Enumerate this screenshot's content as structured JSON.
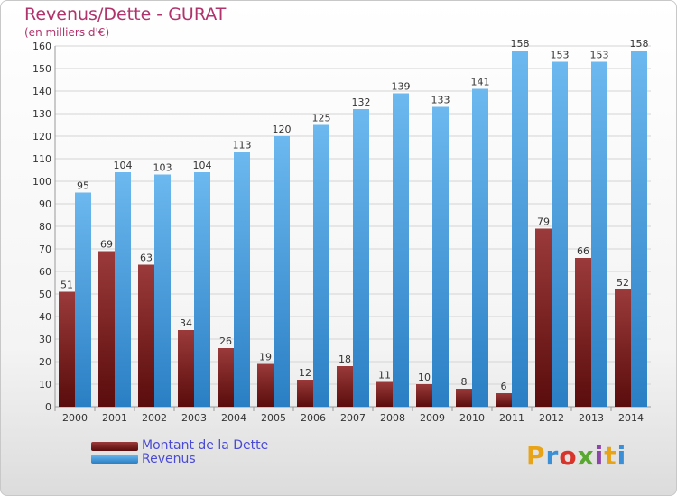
{
  "title": "Revenus/Dette - GURAT",
  "subtitle": "(en milliers d'€)",
  "legend": {
    "debt_label": "Montant de la Dette",
    "revenue_label": "Revenus"
  },
  "logo": {
    "text": "Proxiti",
    "colors": [
      "#e8a317",
      "#3b8fd6",
      "#d9342b",
      "#5aa832",
      "#8e44ad"
    ]
  },
  "colors": {
    "debt": "#7a1f1f",
    "revenue": "#4aa3e6",
    "title": "#b0336b"
  },
  "chart_data": {
    "type": "bar",
    "title": "Revenus/Dette - GURAT",
    "subtitle": "(en milliers d'€)",
    "categories": [
      "2000",
      "2001",
      "2002",
      "2003",
      "2004",
      "2005",
      "2006",
      "2007",
      "2008",
      "2009",
      "2010",
      "2011",
      "2012",
      "2013",
      "2014"
    ],
    "series": [
      {
        "name": "Montant de la Dette",
        "values": [
          51,
          69,
          63,
          34,
          26,
          19,
          12,
          18,
          11,
          10,
          8,
          6,
          79,
          66,
          52
        ]
      },
      {
        "name": "Revenus",
        "values": [
          95,
          104,
          103,
          104,
          113,
          120,
          125,
          132,
          139,
          133,
          141,
          158,
          153,
          153,
          158
        ]
      }
    ],
    "yticks": [
      0,
      10,
      20,
      30,
      40,
      50,
      60,
      70,
      80,
      90,
      100,
      110,
      120,
      130,
      140,
      150,
      160
    ],
    "ylim": [
      0,
      160
    ],
    "grid": true,
    "legend_position": "bottom-left"
  }
}
